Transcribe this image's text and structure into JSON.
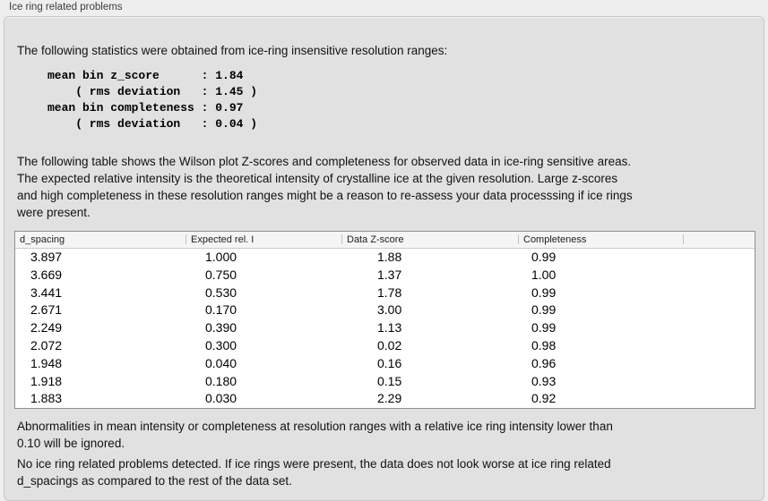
{
  "panel": {
    "title": "Ice ring related problems"
  },
  "stats": {
    "intro": "The following statistics were obtained from ice-ring insensitive resolution ranges:",
    "mono_text": "mean bin z_score      : 1.84\n    ( rms deviation   : 1.45 )\nmean bin completeness : 0.97\n    ( rms deviation   : 0.04 )",
    "mean_bin_z_score": "1.84",
    "z_score_rms_deviation": "1.45",
    "mean_bin_completeness": "0.97",
    "completeness_rms_deviation": "0.04"
  },
  "description": "The following table shows the Wilson plot Z-scores and completeness for observed data in ice-ring sensitive areas.\nThe expected relative intensity is the theoretical intensity of crystalline ice at the given resolution. Large z-scores\nand high completeness in these resolution ranges might be a reason to re-assess your data processsing if ice rings\nwere present.",
  "table": {
    "columns": [
      "d_spacing",
      "Expected rel. I",
      "Data Z-score",
      "Completeness",
      ""
    ],
    "rows": [
      [
        "3.897",
        "1.000",
        "1.88",
        "0.99"
      ],
      [
        "3.669",
        "0.750",
        "1.37",
        "1.00"
      ],
      [
        "3.441",
        "0.530",
        "1.78",
        "0.99"
      ],
      [
        "2.671",
        "0.170",
        "3.00",
        "0.99"
      ],
      [
        "2.249",
        "0.390",
        "1.13",
        "0.99"
      ],
      [
        "2.072",
        "0.300",
        "0.02",
        "0.98"
      ],
      [
        "1.948",
        "0.040",
        "0.16",
        "0.96"
      ],
      [
        "1.918",
        "0.180",
        "0.15",
        "0.93"
      ],
      [
        "1.883",
        "0.030",
        "2.29",
        "0.92"
      ]
    ]
  },
  "notes": {
    "ignore_threshold": "Abnormalities in mean intensity or completeness at resolution ranges with a relative ice ring intensity lower than\n0.10 will be ignored.",
    "result_summary": "No ice ring related problems detected. If ice rings were present, the data does not look worse at ice ring related\nd_spacings as compared to the rest of the data set."
  },
  "colors": {
    "page_background": "#eeeeee",
    "panel_background": "#e1e1e1",
    "panel_border": "#c7c7c7",
    "table_border": "#8f8f8f",
    "table_header_background": "#f5f5f5",
    "text": "#121212"
  }
}
